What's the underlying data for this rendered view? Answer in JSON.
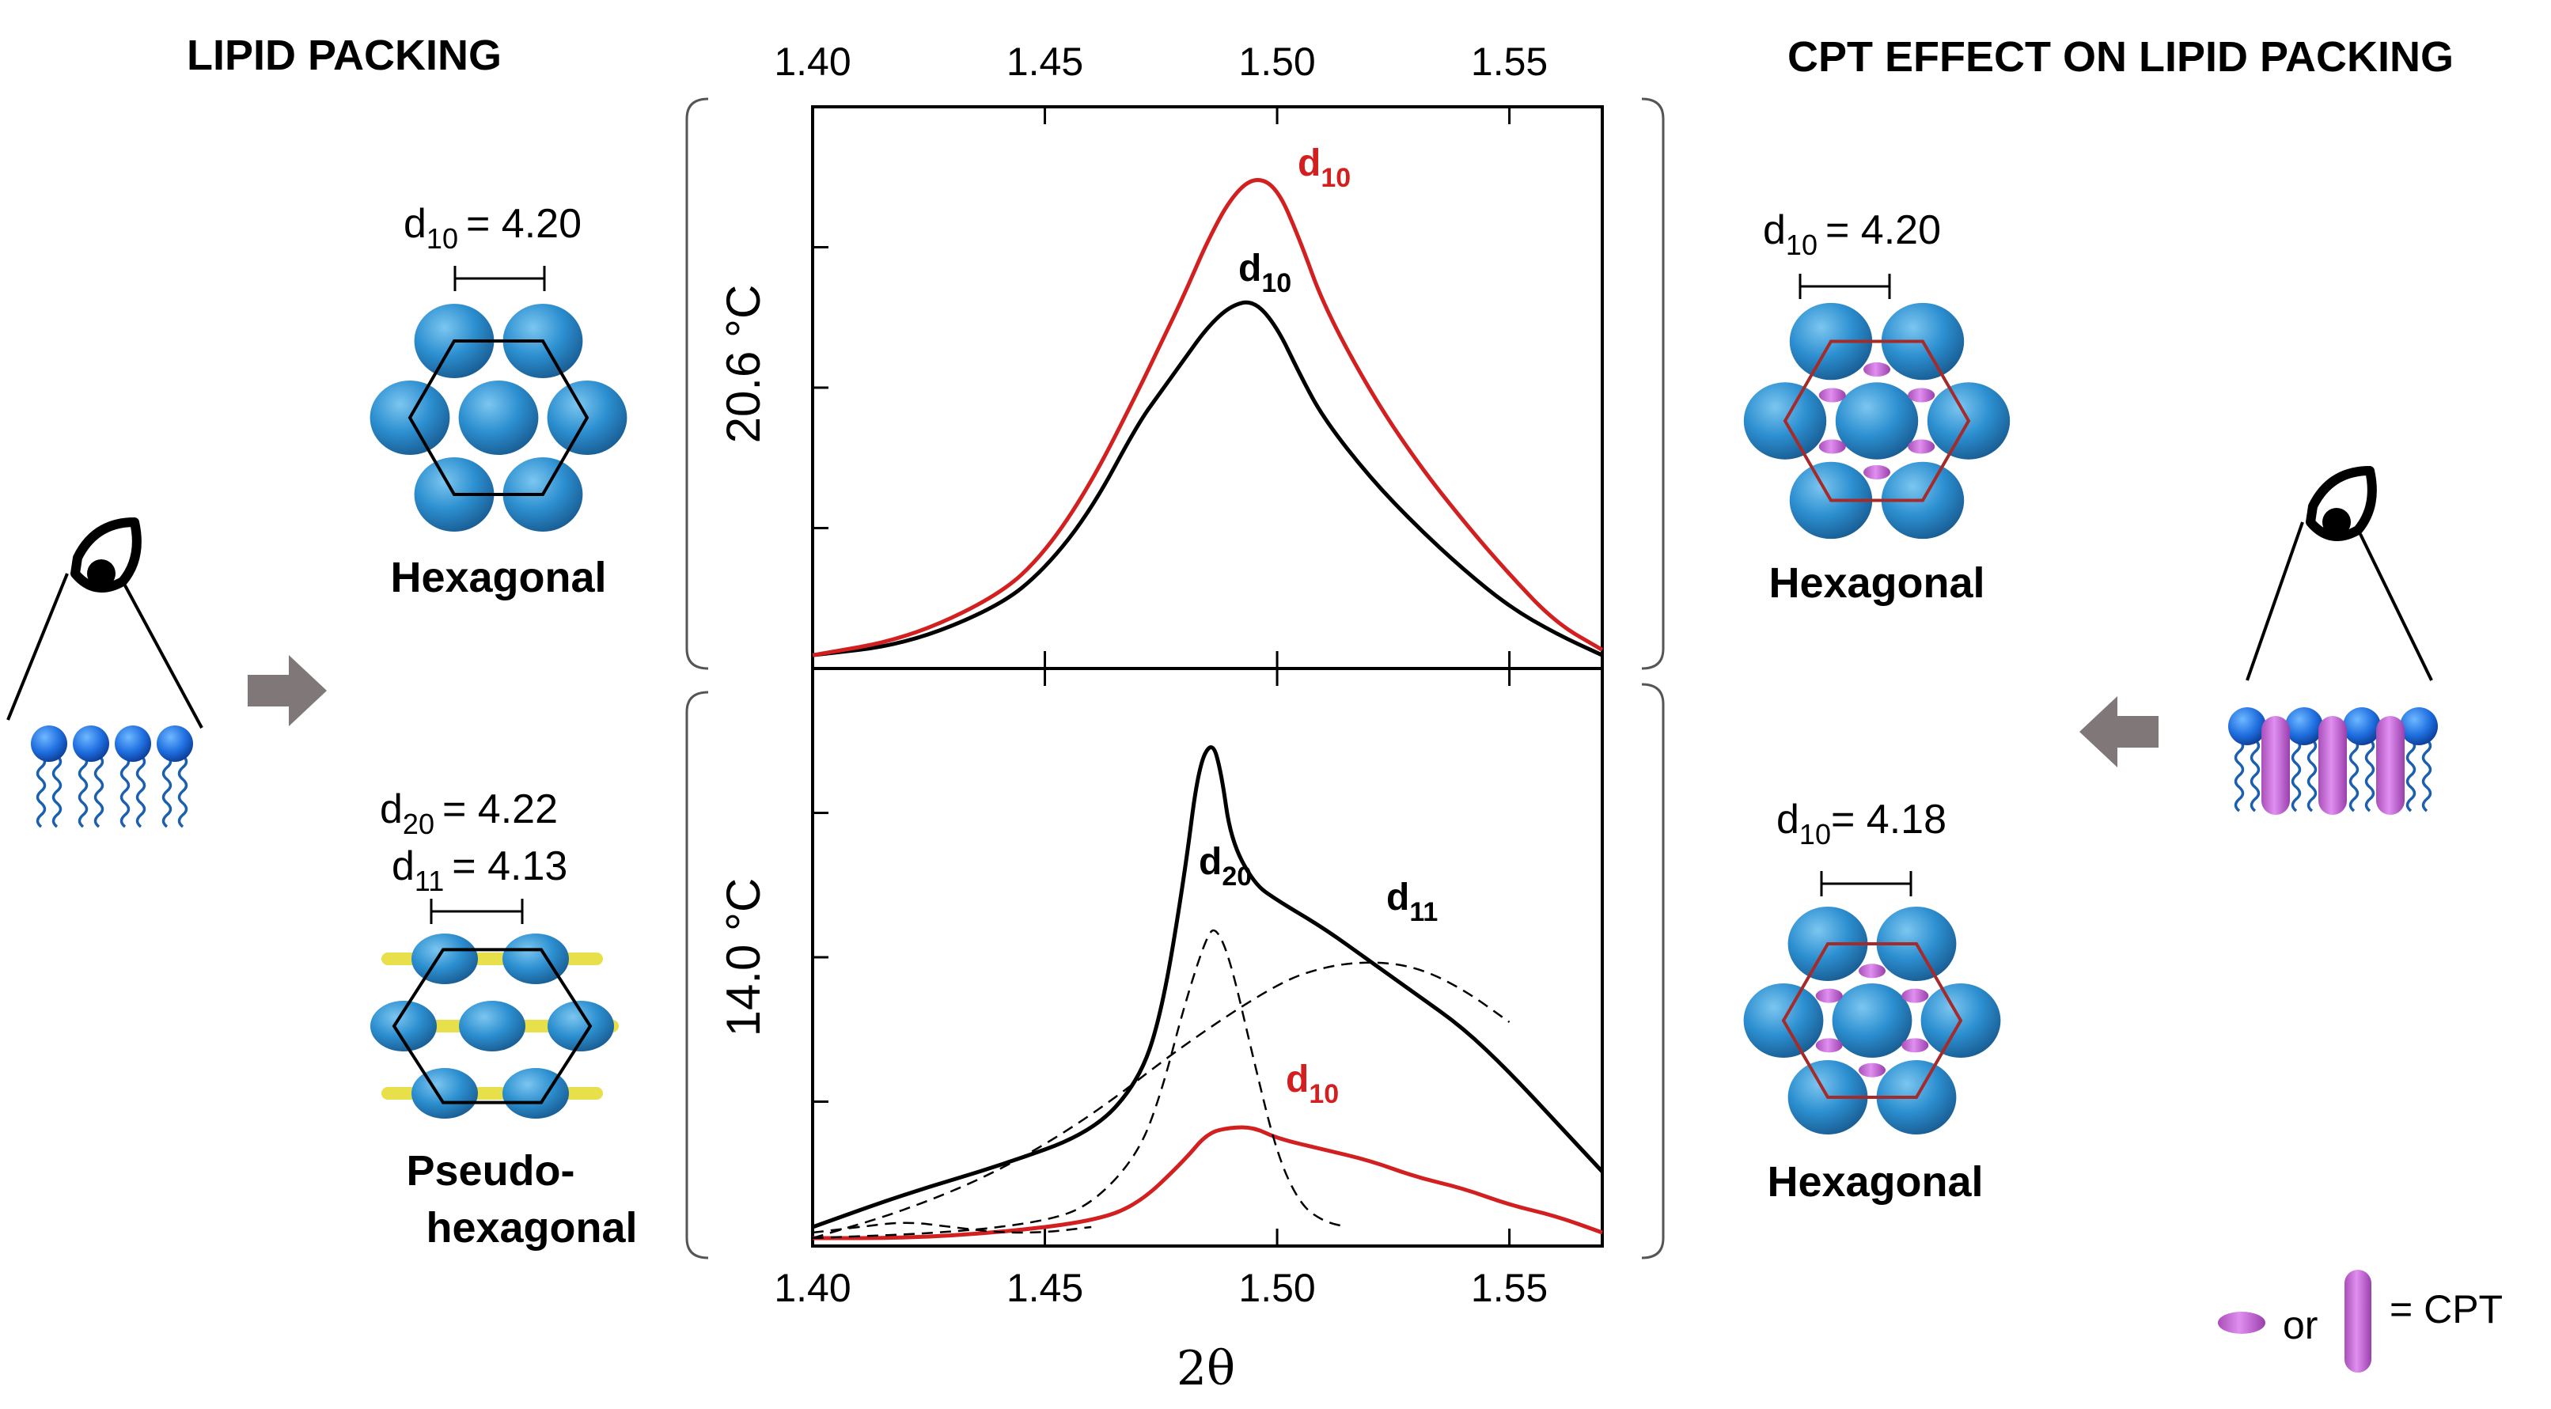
{
  "left_title": "LIPID PACKING",
  "right_title": "CPT EFFECT ON LIPID PACKING",
  "left_panels": {
    "top": {
      "d_prefix": "d",
      "d_sub": "10",
      "d_value": "= 4.20",
      "label": "Hexagonal"
    },
    "bottom": {
      "line1_prefix": "d",
      "line1_sub": "20",
      "line1_value": "= 4.22",
      "line2_prefix": "d",
      "line2_sub": "11",
      "line2_value": "= 4.13",
      "label_line1": "Pseudo-",
      "label_line2": "hexagonal"
    }
  },
  "right_panels": {
    "top": {
      "d_prefix": "d",
      "d_sub": "10",
      "d_value": "= 4.20",
      "label": "Hexagonal"
    },
    "bottom": {
      "d_prefix": "d",
      "d_sub": "10",
      "d_value": "= 4.18",
      "label": "Hexagonal"
    }
  },
  "legend": {
    "or_text": "or",
    "cpt_text": "= CPT"
  },
  "colors": {
    "red": "#d22020",
    "black": "#000000",
    "blue": "#2c8fd0",
    "purple": "#b85ac4",
    "arrow": "#807878",
    "yellow": "#e8e04a"
  },
  "chart_data": [
    {
      "type": "line",
      "panel": "top",
      "ylabel": "20.6 °C",
      "x_ticks": [
        "1.40",
        "1.45",
        "1.50",
        "1.55"
      ],
      "xlim": [
        1.4,
        1.57
      ],
      "ylim": [
        0,
        1.0
      ],
      "xlabel": "2θ",
      "series": [
        {
          "name": "black",
          "color": "black",
          "style": "solid",
          "x": [
            1.4,
            1.42,
            1.44,
            1.45,
            1.46,
            1.47,
            1.475,
            1.48,
            1.485,
            1.49,
            1.495,
            1.5,
            1.505,
            1.51,
            1.52,
            1.53,
            1.54,
            1.55,
            1.56,
            1.57
          ],
          "y": [
            0.01,
            0.03,
            0.1,
            0.17,
            0.28,
            0.44,
            0.5,
            0.56,
            0.62,
            0.66,
            0.67,
            0.62,
            0.53,
            0.45,
            0.34,
            0.25,
            0.17,
            0.1,
            0.05,
            0.01
          ]
        },
        {
          "name": "red",
          "color": "red",
          "style": "solid",
          "x": [
            1.4,
            1.42,
            1.44,
            1.45,
            1.46,
            1.47,
            1.475,
            1.48,
            1.485,
            1.49,
            1.495,
            1.5,
            1.505,
            1.51,
            1.52,
            1.53,
            1.54,
            1.55,
            1.56,
            1.57
          ],
          "y": [
            0.01,
            0.04,
            0.12,
            0.2,
            0.33,
            0.5,
            0.59,
            0.68,
            0.78,
            0.86,
            0.9,
            0.88,
            0.78,
            0.66,
            0.5,
            0.37,
            0.26,
            0.16,
            0.07,
            0.02
          ]
        }
      ],
      "annotations": [
        {
          "prefix": "d",
          "sub": "10",
          "color": "red"
        },
        {
          "prefix": "d",
          "sub": "10",
          "color": "black"
        }
      ]
    },
    {
      "type": "line",
      "panel": "bottom",
      "ylabel": "14.0 °C",
      "x_ticks": [
        "1.40",
        "1.45",
        "1.50",
        "1.55"
      ],
      "xlim": [
        1.4,
        1.57
      ],
      "ylim": [
        0,
        1.0
      ],
      "xlabel": "2θ",
      "series": [
        {
          "name": "black",
          "color": "black",
          "style": "solid",
          "x": [
            1.4,
            1.42,
            1.44,
            1.46,
            1.47,
            1.475,
            1.48,
            1.483,
            1.486,
            1.488,
            1.49,
            1.495,
            1.5,
            1.51,
            1.52,
            1.53,
            1.54,
            1.55,
            1.56,
            1.57
          ],
          "y": [
            0.02,
            0.08,
            0.13,
            0.19,
            0.28,
            0.4,
            0.65,
            0.85,
            0.9,
            0.84,
            0.72,
            0.64,
            0.61,
            0.56,
            0.5,
            0.44,
            0.38,
            0.3,
            0.21,
            0.12
          ]
        },
        {
          "name": "red",
          "color": "red",
          "style": "solid",
          "x": [
            1.4,
            1.42,
            1.44,
            1.46,
            1.47,
            1.48,
            1.485,
            1.49,
            1.495,
            1.5,
            1.51,
            1.52,
            1.53,
            1.54,
            1.55,
            1.56,
            1.57
          ],
          "y": [
            0.0,
            0.0,
            0.01,
            0.03,
            0.06,
            0.14,
            0.19,
            0.2,
            0.2,
            0.18,
            0.16,
            0.14,
            0.11,
            0.09,
            0.06,
            0.04,
            0.01
          ]
        },
        {
          "name": "d20 fit",
          "color": "black",
          "style": "dashed",
          "x": [
            1.4,
            1.43,
            1.45,
            1.46,
            1.47,
            1.475,
            1.48,
            1.485,
            1.487,
            1.49,
            1.495,
            1.5,
            1.505,
            1.51,
            1.515
          ],
          "y": [
            0.0,
            0.01,
            0.03,
            0.06,
            0.15,
            0.26,
            0.42,
            0.55,
            0.56,
            0.5,
            0.32,
            0.15,
            0.06,
            0.03,
            0.02
          ]
        },
        {
          "name": "d11 fit",
          "color": "black",
          "style": "dashed",
          "x": [
            1.4,
            1.42,
            1.44,
            1.46,
            1.48,
            1.5,
            1.51,
            1.52,
            1.53,
            1.54,
            1.55
          ],
          "y": [
            0.0,
            0.05,
            0.12,
            0.22,
            0.35,
            0.46,
            0.49,
            0.5,
            0.49,
            0.45,
            0.39
          ]
        },
        {
          "name": "small dashed",
          "color": "black",
          "style": "dashed",
          "x": [
            1.4,
            1.41,
            1.42,
            1.43,
            1.44,
            1.45,
            1.46
          ],
          "y": [
            0.01,
            0.02,
            0.03,
            0.02,
            0.01,
            0.01,
            0.02
          ]
        }
      ],
      "annotations": [
        {
          "prefix": "d",
          "sub": "20",
          "color": "black"
        },
        {
          "prefix": "d",
          "sub": "11",
          "color": "black"
        },
        {
          "prefix": "d",
          "sub": "10",
          "color": "red"
        }
      ]
    }
  ]
}
